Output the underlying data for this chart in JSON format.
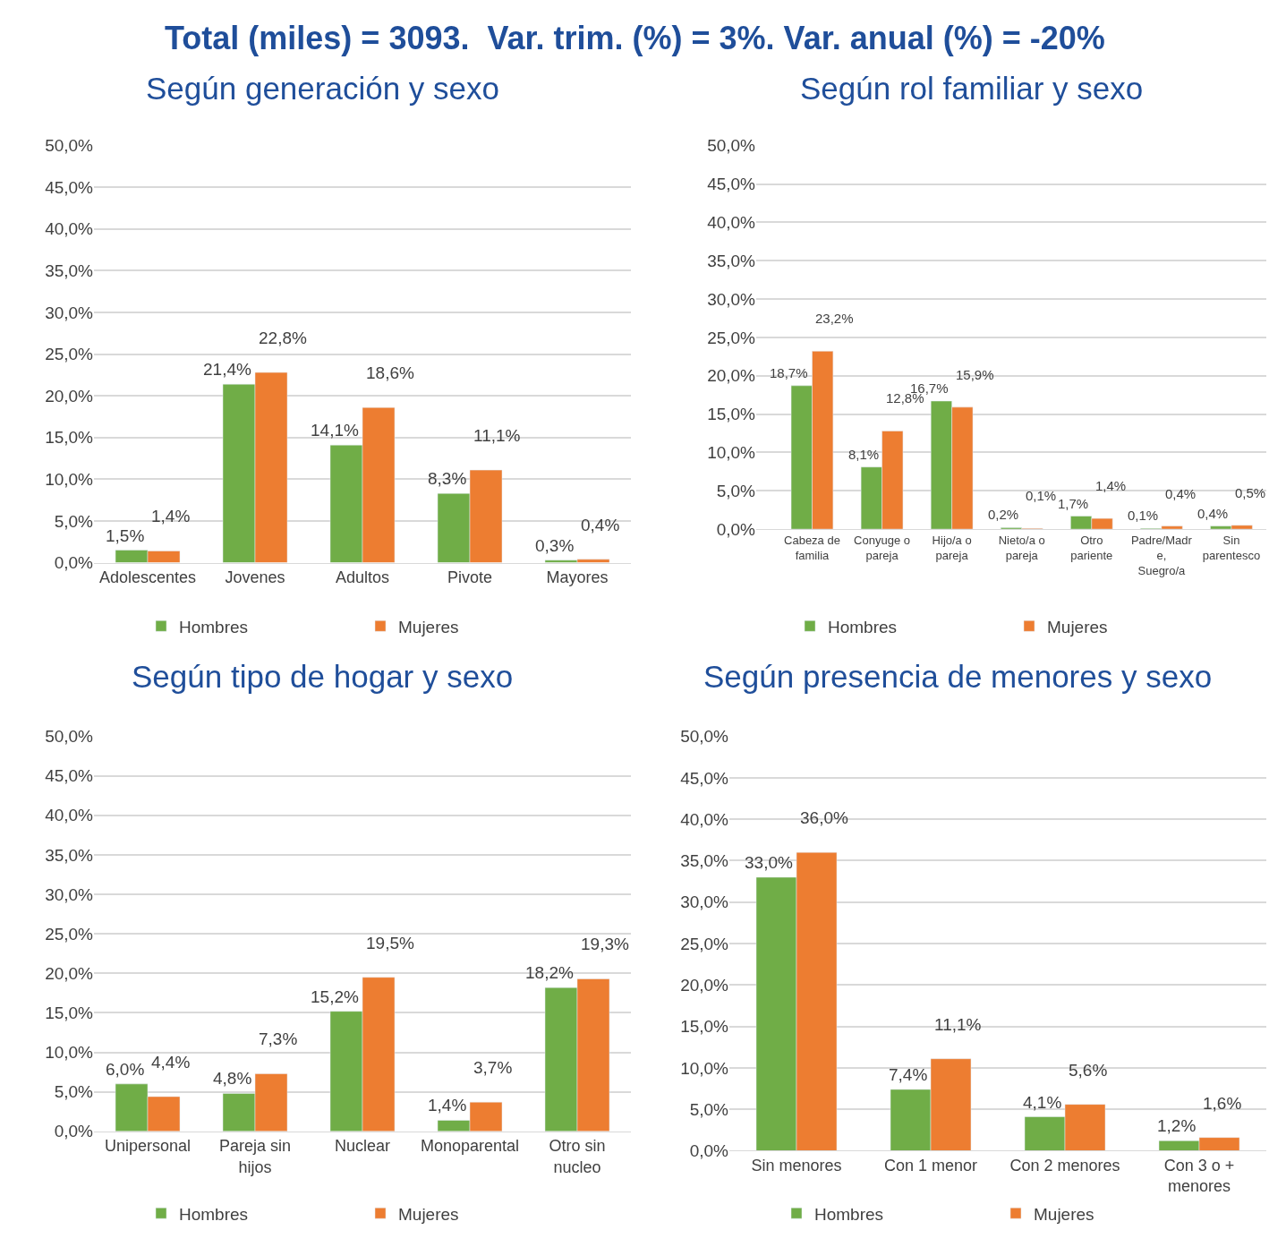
{
  "chart_data": [
    {
      "type": "bar",
      "title": "Según generación y sexo",
      "annotations": [
        "Total (miles) = 3093.  Var. trim. (%) = 3%. Var. anual (%) = -20%"
      ],
      "categories": [
        "Adolescentes",
        "Jovenes",
        "Adultos",
        "Pivote",
        "Mayores"
      ],
      "series": [
        {
          "name": "Hombres",
          "color": "#70ad47",
          "values": [
            1.5,
            21.4,
            14.1,
            8.3,
            0.3
          ],
          "value_labels": [
            "1,5%",
            "21,4%",
            "14,1%",
            "8,3%",
            "0,3%"
          ]
        },
        {
          "name": "Mujeres",
          "color": "#ed7d31",
          "values": [
            1.4,
            22.8,
            18.6,
            11.1,
            0.4
          ],
          "value_labels": [
            "1,4%",
            "22,8%",
            "18,6%",
            "11,1%",
            "0,4%"
          ]
        }
      ],
      "ylim": [
        0,
        50
      ],
      "yticks": [
        {
          "value": 0,
          "label": "0,0%"
        },
        {
          "value": 5,
          "label": "5,0%"
        },
        {
          "value": 10,
          "label": "10,0%"
        },
        {
          "value": 15,
          "label": "15,0%"
        },
        {
          "value": 20,
          "label": "20,0%"
        },
        {
          "value": 25,
          "label": "25,0%"
        },
        {
          "value": 30,
          "label": "30,0%"
        },
        {
          "value": 35,
          "label": "35,0%"
        },
        {
          "value": 40,
          "label": "40,0%"
        },
        {
          "value": 45,
          "label": "45,0%"
        },
        {
          "value": 50,
          "label": "50,0%"
        }
      ],
      "grid": "y",
      "legend": "bottom"
    },
    {
      "type": "bar",
      "title": "Según rol familiar y sexo",
      "categories": [
        "Cabeza de familia",
        "Conyuge o pareja",
        "Hijo/a o pareja",
        "Nieto/a o pareja",
        "Otro pariente",
        "Padre/Madre, Suegro/a",
        "Sin parentesco"
      ],
      "series": [
        {
          "name": "Hombres",
          "color": "#70ad47",
          "values": [
            18.7,
            8.1,
            16.7,
            0.2,
            1.7,
            0.1,
            0.4
          ],
          "value_labels": [
            "18,7%",
            "8,1%",
            "16,7%",
            "0,2%",
            "1,7%",
            "0,1%",
            "0,4%"
          ]
        },
        {
          "name": "Mujeres",
          "color": "#ed7d31",
          "values": [
            23.2,
            12.8,
            15.9,
            0.1,
            1.4,
            0.4,
            0.5
          ],
          "value_labels": [
            "23,2%",
            "12,8%",
            "15,9%",
            "0,1%",
            "1,4%",
            "0,4%",
            "0,5%"
          ]
        }
      ],
      "ylim": [
        0,
        50
      ],
      "yticks": [
        {
          "value": 0,
          "label": "0,0%"
        },
        {
          "value": 5,
          "label": "5,0%"
        },
        {
          "value": 10,
          "label": "10,0%"
        },
        {
          "value": 15,
          "label": "15,0%"
        },
        {
          "value": 20,
          "label": "20,0%"
        },
        {
          "value": 25,
          "label": "25,0%"
        },
        {
          "value": 30,
          "label": "30,0%"
        },
        {
          "value": 35,
          "label": "35,0%"
        },
        {
          "value": 40,
          "label": "40,0%"
        },
        {
          "value": 45,
          "label": "45,0%"
        },
        {
          "value": 50,
          "label": "50,0%"
        }
      ],
      "grid": "y",
      "legend": "bottom"
    },
    {
      "type": "bar",
      "title": "Según tipo de hogar y sexo",
      "categories": [
        "Unipersonal",
        "Pareja sin hijos",
        "Nuclear",
        "Monoparental",
        "Otro sin nucleo"
      ],
      "series": [
        {
          "name": "Hombres",
          "color": "#70ad47",
          "values": [
            6.0,
            4.8,
            15.2,
            1.4,
            18.2
          ],
          "value_labels": [
            "6,0%",
            "4,8%",
            "15,2%",
            "1,4%",
            "18,2%"
          ]
        },
        {
          "name": "Mujeres",
          "color": "#ed7d31",
          "values": [
            4.4,
            7.3,
            19.5,
            3.7,
            19.3
          ],
          "value_labels": [
            "4,4%",
            "7,3%",
            "19,5%",
            "3,7%",
            "19,3%"
          ]
        }
      ],
      "ylim": [
        0,
        50
      ],
      "yticks": [
        {
          "value": 0,
          "label": "0,0%"
        },
        {
          "value": 5,
          "label": "5,0%"
        },
        {
          "value": 10,
          "label": "10,0%"
        },
        {
          "value": 15,
          "label": "15,0%"
        },
        {
          "value": 20,
          "label": "20,0%"
        },
        {
          "value": 25,
          "label": "25,0%"
        },
        {
          "value": 30,
          "label": "30,0%"
        },
        {
          "value": 35,
          "label": "35,0%"
        },
        {
          "value": 40,
          "label": "40,0%"
        },
        {
          "value": 45,
          "label": "45,0%"
        },
        {
          "value": 50,
          "label": "50,0%"
        }
      ],
      "grid": "y",
      "legend": "bottom"
    },
    {
      "type": "bar",
      "title": "Según presencia de menores y sexo",
      "categories": [
        "Sin menores",
        "Con 1 menor",
        "Con 2 menores",
        "Con 3 o + menores"
      ],
      "series": [
        {
          "name": "Hombres",
          "color": "#70ad47",
          "values": [
            33.0,
            7.4,
            4.1,
            1.2
          ],
          "value_labels": [
            "33,0%",
            "7,4%",
            "4,1%",
            "1,2%"
          ]
        },
        {
          "name": "Mujeres",
          "color": "#ed7d31",
          "values": [
            36.0,
            11.1,
            5.6,
            1.6
          ],
          "value_labels": [
            "36,0%",
            "11,1%",
            "5,6%",
            "1,6%"
          ]
        }
      ],
      "ylim": [
        0,
        50
      ],
      "yticks": [
        {
          "value": 0,
          "label": "0,0%"
        },
        {
          "value": 5,
          "label": "5,0%"
        },
        {
          "value": 10,
          "label": "10,0%"
        },
        {
          "value": 15,
          "label": "15,0%"
        },
        {
          "value": 20,
          "label": "20,0%"
        },
        {
          "value": 25,
          "label": "25,0%"
        },
        {
          "value": 30,
          "label": "30,0%"
        },
        {
          "value": 35,
          "label": "35,0%"
        },
        {
          "value": 40,
          "label": "40,0%"
        },
        {
          "value": 45,
          "label": "45,0%"
        },
        {
          "value": 50,
          "label": "50,0%"
        }
      ],
      "grid": "y",
      "legend": "bottom"
    }
  ]
}
